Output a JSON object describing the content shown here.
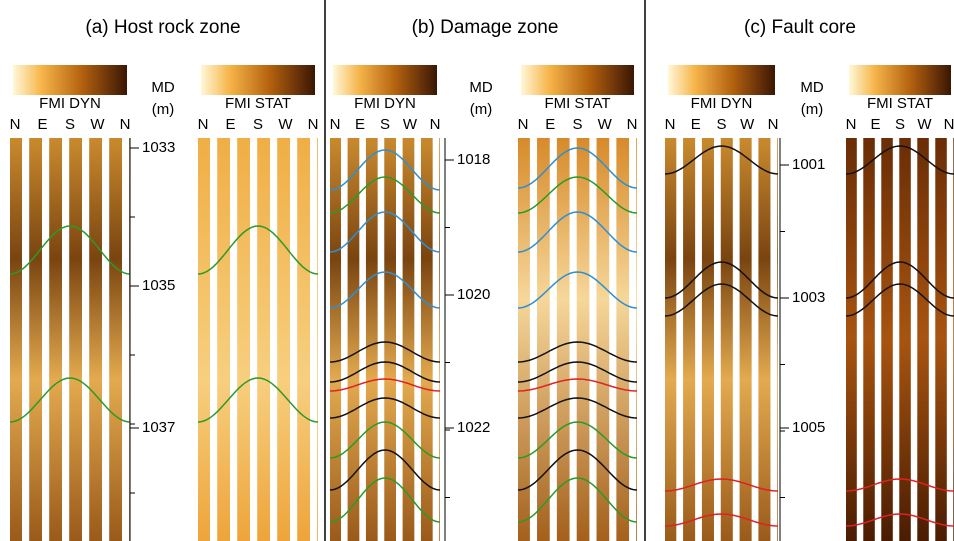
{
  "panels": [
    {
      "title": "(a) Host rock zone",
      "depth_label": "MD",
      "depth_unit": "(m)",
      "tracks": [
        {
          "label": "FMI DYN",
          "azimuths": [
            "N",
            "E",
            "S",
            "W",
            "N"
          ]
        },
        {
          "label": "FMI STAT",
          "azimuths": [
            "N",
            "E",
            "S",
            "W",
            "N"
          ]
        }
      ],
      "depth_ticks": [
        "1033",
        "1035",
        "1037"
      ]
    },
    {
      "title": "(b) Damage zone",
      "depth_label": "MD",
      "depth_unit": "(m)",
      "tracks": [
        {
          "label": "FMI DYN",
          "azimuths": [
            "N",
            "E",
            "S",
            "W",
            "N"
          ]
        },
        {
          "label": "FMI STAT",
          "azimuths": [
            "N",
            "E",
            "S",
            "W",
            "N"
          ]
        }
      ],
      "depth_ticks": [
        "1018",
        "1020",
        "1022"
      ]
    },
    {
      "title": "(c) Fault core",
      "depth_label": "MD",
      "depth_unit": "(m)",
      "tracks": [
        {
          "label": "FMI DYN",
          "azimuths": [
            "N",
            "E",
            "S",
            "W",
            "N"
          ]
        },
        {
          "label": "FMI STAT",
          "azimuths": [
            "N",
            "E",
            "S",
            "W",
            "N"
          ]
        }
      ],
      "depth_ticks": [
        "1001",
        "1003",
        "1005"
      ]
    }
  ]
}
